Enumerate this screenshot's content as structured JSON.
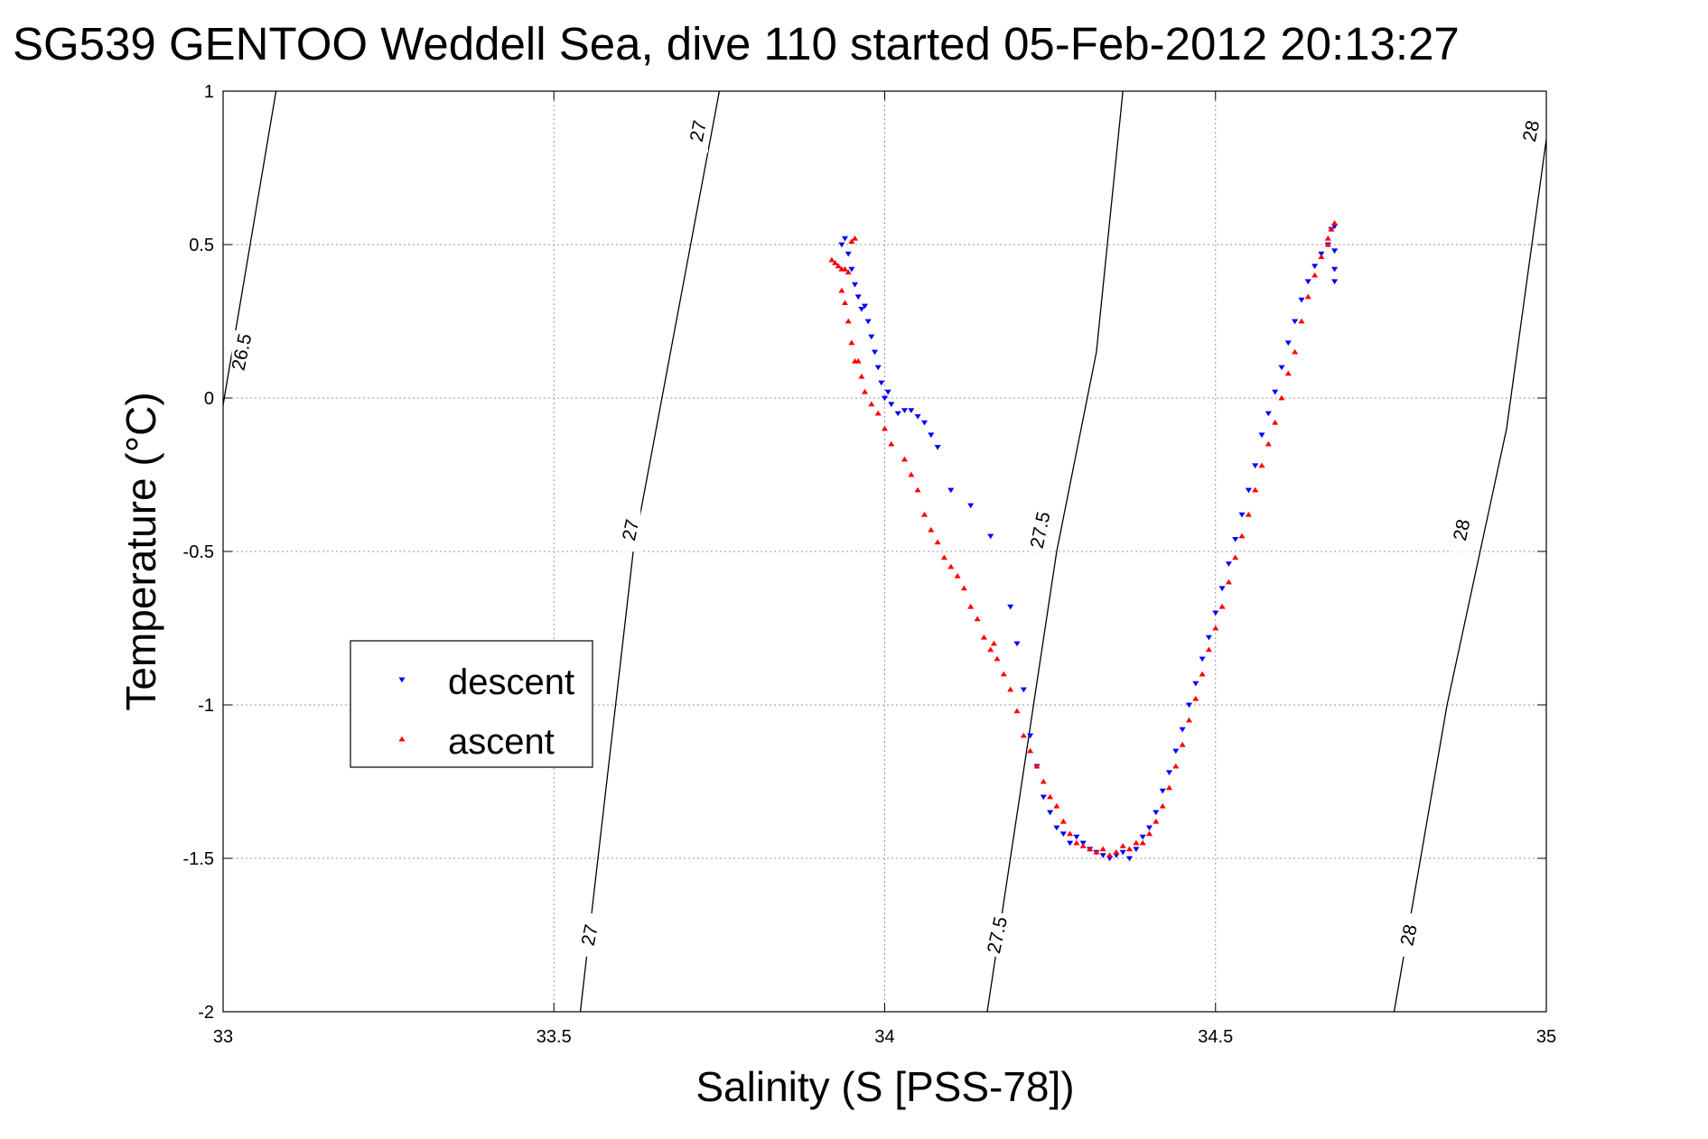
{
  "chart_data": {
    "type": "scatter",
    "title": "SG539 GENTOO Weddell Sea, dive 110 started 05-Feb-2012 20:13:27",
    "xlabel": "Salinity (S [PSS-78])",
    "ylabel": "Temperature (°C)",
    "xlim": [
      33,
      35
    ],
    "ylim": [
      -2,
      1
    ],
    "xticks": [
      33,
      33.5,
      34,
      34.5,
      35
    ],
    "xtick_labels": [
      "33",
      "33.5",
      "34",
      "34.5",
      "35"
    ],
    "yticks": [
      -2,
      -1.5,
      -1,
      -0.5,
      0,
      0.5,
      1
    ],
    "ytick_labels": [
      "-2",
      "-1.5",
      "-1",
      "-0.5",
      "0",
      "0.5",
      "1"
    ],
    "grid": true,
    "legend_position": "left",
    "density_contours": [
      {
        "label": "26.5",
        "points": [
          [
            32.99,
            -0.15
          ],
          [
            33.08,
            1.0
          ]
        ],
        "label_positions": [
          [
            33.028,
            0.15
          ]
        ]
      },
      {
        "label": "27",
        "points": [
          [
            33.54,
            -2.0
          ],
          [
            33.62,
            -0.5
          ],
          [
            33.75,
            1.0
          ]
        ],
        "label_positions": [
          [
            33.554,
            -1.75
          ],
          [
            33.616,
            -0.43
          ],
          [
            33.718,
            0.87
          ]
        ]
      },
      {
        "label": "27.5",
        "points": [
          [
            34.155,
            -2.0
          ],
          [
            34.26,
            -0.5
          ],
          [
            34.32,
            0.15
          ],
          [
            34.36,
            1.0
          ]
        ],
        "label_positions": [
          [
            34.17,
            -1.75
          ],
          [
            34.235,
            -0.43
          ]
        ]
      },
      {
        "label": "28",
        "points": [
          [
            34.77,
            -2.0
          ],
          [
            34.85,
            -1.0
          ],
          [
            34.94,
            -0.1
          ],
          [
            35.01,
            1.0
          ]
        ],
        "label_positions": [
          [
            34.792,
            -1.75
          ],
          [
            34.872,
            -0.43
          ],
          [
            34.977,
            0.87
          ]
        ]
      }
    ],
    "series": [
      {
        "name": "descent",
        "color": "#0000ff",
        "marker": "triangle-down",
        "x": [
          33.935,
          33.94,
          33.945,
          33.95,
          33.955,
          33.96,
          33.965,
          33.97,
          33.975,
          33.98,
          33.985,
          33.99,
          33.995,
          34.0,
          34.005,
          34.01,
          34.02,
          34.03,
          34.04,
          34.05,
          34.06,
          34.07,
          34.08,
          34.1,
          34.13,
          34.16,
          34.19,
          34.2,
          34.21,
          34.22,
          34.23,
          34.24,
          34.25,
          34.26,
          34.27,
          34.28,
          34.29,
          34.3,
          34.31,
          34.32,
          34.33,
          34.34,
          34.35,
          34.36,
          34.37,
          34.38,
          34.39,
          34.4,
          34.41,
          34.42,
          34.43,
          34.44,
          34.45,
          34.46,
          34.47,
          34.48,
          34.49,
          34.5,
          34.51,
          34.52,
          34.53,
          34.54,
          34.55,
          34.56,
          34.57,
          34.58,
          34.59,
          34.6,
          34.61,
          34.62,
          34.63,
          34.64,
          34.65,
          34.66,
          34.67,
          34.675,
          34.68,
          34.68,
          34.68,
          34.68
        ],
        "y": [
          0.5,
          0.52,
          0.47,
          0.42,
          0.37,
          0.33,
          0.29,
          0.3,
          0.25,
          0.2,
          0.15,
          0.1,
          0.05,
          0.0,
          0.02,
          -0.02,
          -0.05,
          -0.04,
          -0.04,
          -0.06,
          -0.08,
          -0.12,
          -0.16,
          -0.3,
          -0.35,
          -0.45,
          -0.68,
          -0.8,
          -0.95,
          -1.1,
          -1.2,
          -1.3,
          -1.35,
          -1.4,
          -1.42,
          -1.45,
          -1.43,
          -1.45,
          -1.47,
          -1.48,
          -1.49,
          -1.5,
          -1.49,
          -1.48,
          -1.5,
          -1.47,
          -1.43,
          -1.4,
          -1.35,
          -1.28,
          -1.22,
          -1.15,
          -1.08,
          -1.0,
          -0.93,
          -0.85,
          -0.78,
          -0.7,
          -0.62,
          -0.54,
          -0.46,
          -0.38,
          -0.3,
          -0.22,
          -0.12,
          -0.05,
          0.02,
          0.1,
          0.18,
          0.25,
          0.32,
          0.38,
          0.43,
          0.47,
          0.5,
          0.55,
          0.56,
          0.48,
          0.42,
          0.38
        ]
      },
      {
        "name": "ascent",
        "color": "#ff0000",
        "marker": "triangle-up",
        "x": [
          33.92,
          33.925,
          33.93,
          33.935,
          33.94,
          33.945,
          33.95,
          33.955,
          33.935,
          33.94,
          33.945,
          33.95,
          33.955,
          33.96,
          33.965,
          33.97,
          33.98,
          33.99,
          34.0,
          34.01,
          34.03,
          34.04,
          34.05,
          34.06,
          34.07,
          34.08,
          34.09,
          34.1,
          34.11,
          34.12,
          34.13,
          34.14,
          34.15,
          34.16,
          34.165,
          34.17,
          34.18,
          34.19,
          34.2,
          34.21,
          34.22,
          34.23,
          34.24,
          34.25,
          34.26,
          34.27,
          34.28,
          34.29,
          34.3,
          34.31,
          34.32,
          34.33,
          34.34,
          34.35,
          34.36,
          34.37,
          34.38,
          34.39,
          34.4,
          34.41,
          34.42,
          34.43,
          34.44,
          34.45,
          34.46,
          34.47,
          34.48,
          34.49,
          34.5,
          34.51,
          34.52,
          34.53,
          34.54,
          34.55,
          34.56,
          34.57,
          34.58,
          34.59,
          34.6,
          34.61,
          34.62,
          34.63,
          34.64,
          34.65,
          34.66,
          34.67,
          34.675,
          34.68,
          34.675,
          34.67
        ],
        "y": [
          0.45,
          0.44,
          0.43,
          0.42,
          0.42,
          0.41,
          0.51,
          0.52,
          0.35,
          0.31,
          0.25,
          0.18,
          0.12,
          0.12,
          0.07,
          0.02,
          -0.02,
          -0.05,
          -0.1,
          -0.15,
          -0.2,
          -0.25,
          -0.3,
          -0.38,
          -0.43,
          -0.47,
          -0.52,
          -0.55,
          -0.58,
          -0.62,
          -0.68,
          -0.72,
          -0.78,
          -0.82,
          -0.8,
          -0.85,
          -0.9,
          -0.95,
          -1.02,
          -1.1,
          -1.15,
          -1.2,
          -1.25,
          -1.3,
          -1.33,
          -1.38,
          -1.42,
          -1.45,
          -1.46,
          -1.47,
          -1.48,
          -1.47,
          -1.49,
          -1.48,
          -1.46,
          -1.47,
          -1.45,
          -1.45,
          -1.42,
          -1.38,
          -1.33,
          -1.27,
          -1.2,
          -1.13,
          -1.05,
          -0.98,
          -0.9,
          -0.82,
          -0.75,
          -0.68,
          -0.6,
          -0.52,
          -0.45,
          -0.38,
          -0.3,
          -0.22,
          -0.15,
          -0.08,
          0.0,
          0.08,
          0.15,
          0.25,
          0.33,
          0.4,
          0.46,
          0.52,
          0.55,
          0.57,
          0.55,
          0.5
        ]
      }
    ]
  }
}
